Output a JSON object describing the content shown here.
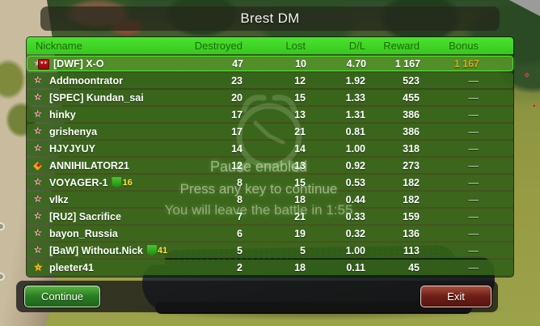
{
  "title": "Brest DM",
  "colors": {
    "header_green": "#41d728",
    "row_green": "#386c1c",
    "highlight_border": "#4be62e",
    "bonus_gold": "#d2ab1e",
    "continue_green": "#2a7e22",
    "exit_red": "#6e2018"
  },
  "table": {
    "columns": [
      "Nickname",
      "Destroyed",
      "Lost",
      "D/L",
      "Reward",
      "Bonus"
    ],
    "rows": [
      {
        "icon": "premium",
        "name": "[DWF] X-O",
        "badge": null,
        "destroyed": "47",
        "lost": "10",
        "dl": "4.70",
        "reward": "1 167",
        "bonus": "1 167",
        "highlight": true
      },
      {
        "icon": "star",
        "name": "Addmoontrator",
        "badge": null,
        "destroyed": "23",
        "lost": "12",
        "dl": "1.92",
        "reward": "523",
        "bonus": "—",
        "highlight": false
      },
      {
        "icon": "star",
        "name": "[SPEC] Kundan_sai",
        "badge": null,
        "destroyed": "20",
        "lost": "15",
        "dl": "1.33",
        "reward": "455",
        "bonus": "—",
        "highlight": false
      },
      {
        "icon": "star",
        "name": "hinky",
        "badge": null,
        "destroyed": "17",
        "lost": "13",
        "dl": "1.31",
        "reward": "386",
        "bonus": "—",
        "highlight": false
      },
      {
        "icon": "star",
        "name": "grishenya",
        "badge": null,
        "destroyed": "17",
        "lost": "21",
        "dl": "0.81",
        "reward": "386",
        "bonus": "—",
        "highlight": false
      },
      {
        "icon": "star",
        "name": "HJYJYUY",
        "badge": null,
        "destroyed": "14",
        "lost": "14",
        "dl": "1.00",
        "reward": "318",
        "bonus": "—",
        "highlight": false
      },
      {
        "icon": "diamond",
        "name": "ANNIHILATOR21",
        "badge": null,
        "destroyed": "12",
        "lost": "13",
        "dl": "0.92",
        "reward": "273",
        "bonus": "—",
        "highlight": false
      },
      {
        "icon": "star",
        "name": "VOYAGER-1",
        "badge": "16",
        "destroyed": "8",
        "lost": "15",
        "dl": "0.53",
        "reward": "182",
        "bonus": "—",
        "highlight": false
      },
      {
        "icon": "star",
        "name": "vlkz",
        "badge": null,
        "destroyed": "8",
        "lost": "18",
        "dl": "0.44",
        "reward": "182",
        "bonus": "—",
        "highlight": false
      },
      {
        "icon": "star",
        "name": "[RU2] Sacrifice",
        "badge": null,
        "destroyed": "7",
        "lost": "21",
        "dl": "0.33",
        "reward": "159",
        "bonus": "—",
        "highlight": false
      },
      {
        "icon": "star",
        "name": "bayon_Russia",
        "badge": null,
        "destroyed": "6",
        "lost": "19",
        "dl": "0.32",
        "reward": "136",
        "bonus": "—",
        "highlight": false
      },
      {
        "icon": "star",
        "name": "[BaW] Without.Nick",
        "badge": "41",
        "destroyed": "5",
        "lost": "5",
        "dl": "1.00",
        "reward": "113",
        "bonus": "—",
        "highlight": false
      },
      {
        "icon": "burst",
        "name": "pleeter41",
        "badge": null,
        "destroyed": "2",
        "lost": "18",
        "dl": "0.11",
        "reward": "45",
        "bonus": "—",
        "highlight": false
      }
    ]
  },
  "overlay": {
    "pause": "Pause enabled",
    "press": "Press any key to continue",
    "leave": "You will leave the battle in 1:55",
    "icon": "alarm-clock-icon"
  },
  "buttons": {
    "continue": "Continue",
    "exit": "Exit"
  }
}
